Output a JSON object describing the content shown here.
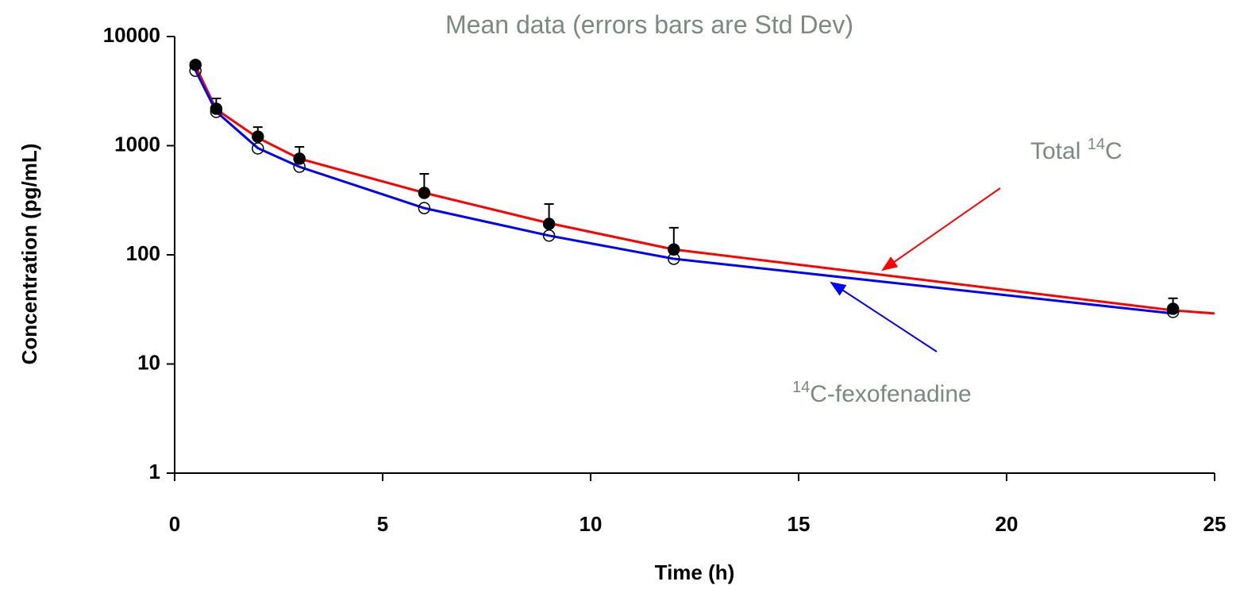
{
  "chart_data": {
    "type": "scatter",
    "title": "Mean data (errors bars are Std Dev)",
    "x_label": "Time (h)",
    "y_label": "Concentration (pg/mL)",
    "log_y": true,
    "xlim": [
      0,
      25
    ],
    "xticks": [
      0,
      5,
      10,
      15,
      20,
      25
    ],
    "ylim": [
      1,
      10000
    ],
    "yticks": [
      1,
      10,
      100,
      1000,
      10000
    ],
    "x": [
      0.5,
      1,
      2,
      3,
      6,
      9,
      12,
      24
    ],
    "series": [
      {
        "marker": "filled",
        "color": "#000000",
        "values": [
          5500,
          2180,
          1210,
          760,
          369,
          192,
          112,
          32
        ],
        "errors": [
          0,
          530,
          270,
          215,
          183,
          100,
          65,
          8
        ]
      },
      {
        "marker": "open",
        "color": "#000000",
        "values": [
          4860,
          2040,
          944,
          641,
          268,
          150,
          92,
          30
        ]
      }
    ],
    "curves": [
      {
        "color": "#ff0000",
        "x": [
          0.5,
          1,
          2,
          3,
          6,
          9,
          12,
          24,
          25
        ],
        "values": [
          5400,
          2150,
          1180,
          760,
          370,
          195,
          112,
          31,
          29
        ]
      },
      {
        "color": "#0000ff",
        "x": [
          0.5,
          1,
          2,
          3,
          6,
          9,
          12,
          24
        ],
        "values": [
          4900,
          2050,
          950,
          640,
          268,
          150,
          92,
          29
        ]
      }
    ],
    "annotations": [
      {
        "prefix": "Total ",
        "sup": "14",
        "suffix": "C",
        "color": "#ff0000"
      },
      {
        "sup": "14",
        "suffix": "C-fexofenadine",
        "color": "#0000ff"
      }
    ]
  }
}
